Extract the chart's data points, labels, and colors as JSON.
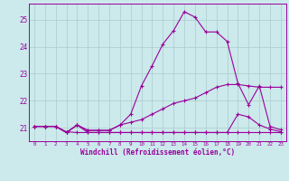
{
  "bg_color": "#cce9ec",
  "grid_color": "#aacccc",
  "line_color": "#990099",
  "xlabel": "Windchill (Refroidissement éolien,°C)",
  "xlim": [
    -0.5,
    23.5
  ],
  "ylim": [
    20.5,
    25.6
  ],
  "yticks": [
    21,
    22,
    23,
    24,
    25
  ],
  "xticks": [
    0,
    1,
    2,
    3,
    4,
    5,
    6,
    7,
    8,
    9,
    10,
    11,
    12,
    13,
    14,
    15,
    16,
    17,
    18,
    19,
    20,
    21,
    22,
    23
  ],
  "lines": [
    {
      "x": [
        0,
        1,
        2,
        3,
        4,
        5,
        6,
        7,
        8,
        9,
        10,
        11,
        12,
        13,
        14,
        15,
        16,
        17,
        18,
        19,
        20,
        21,
        22,
        23
      ],
      "y": [
        21.05,
        21.05,
        21.05,
        20.85,
        20.82,
        20.82,
        20.82,
        20.82,
        20.82,
        20.82,
        20.82,
        20.82,
        20.82,
        20.82,
        20.82,
        20.82,
        20.82,
        20.82,
        20.82,
        20.82,
        20.82,
        20.82,
        20.82,
        20.82
      ]
    },
    {
      "x": [
        0,
        1,
        2,
        3,
        4,
        5,
        6,
        7,
        8,
        9,
        10,
        11,
        12,
        13,
        14,
        15,
        16,
        17,
        18,
        19,
        20,
        21,
        22,
        23
      ],
      "y": [
        21.05,
        21.05,
        21.05,
        20.82,
        21.1,
        20.82,
        20.82,
        20.82,
        20.82,
        20.82,
        20.82,
        20.82,
        20.82,
        20.82,
        20.82,
        20.82,
        20.82,
        20.82,
        20.82,
        21.5,
        21.4,
        21.1,
        20.95,
        20.85
      ]
    },
    {
      "x": [
        0,
        1,
        2,
        3,
        4,
        5,
        6,
        7,
        8,
        9,
        10,
        11,
        12,
        13,
        14,
        15,
        16,
        17,
        18,
        19,
        20,
        21,
        22,
        23
      ],
      "y": [
        21.05,
        21.05,
        21.05,
        20.82,
        21.1,
        20.9,
        20.9,
        20.9,
        21.1,
        21.2,
        21.3,
        21.5,
        21.7,
        21.9,
        22.0,
        22.1,
        22.3,
        22.5,
        22.6,
        22.6,
        22.55,
        22.5,
        22.5,
        22.5
      ]
    },
    {
      "x": [
        0,
        1,
        2,
        3,
        4,
        5,
        6,
        7,
        8,
        9,
        10,
        11,
        12,
        13,
        14,
        15,
        16,
        17,
        18,
        19,
        20,
        21,
        22,
        23
      ],
      "y": [
        21.05,
        21.05,
        21.05,
        20.82,
        21.1,
        20.9,
        20.9,
        20.9,
        21.1,
        21.5,
        22.55,
        23.3,
        24.1,
        24.6,
        25.3,
        25.1,
        24.55,
        24.55,
        24.2,
        22.65,
        21.85,
        22.55,
        21.05,
        20.92
      ]
    }
  ]
}
